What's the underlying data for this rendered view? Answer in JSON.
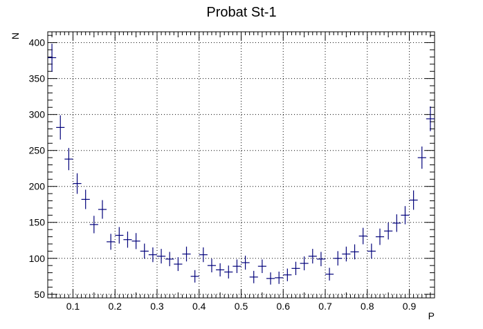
{
  "chart_data": {
    "type": "scatter",
    "title": "Probat St-1",
    "xlabel": "P",
    "ylabel": "N",
    "xlim": [
      0.04,
      0.96
    ],
    "ylim": [
      45,
      415
    ],
    "x_ticks": [
      0.1,
      0.2,
      0.3,
      0.4,
      0.5,
      0.6,
      0.7,
      0.8,
      0.9
    ],
    "x_tick_labels": [
      "0.1",
      "0.2",
      "0.3",
      "0.4",
      "0.5",
      "0.6",
      "0.7",
      "0.8",
      "0.9"
    ],
    "y_ticks": [
      50,
      100,
      150,
      200,
      250,
      300,
      350,
      400
    ],
    "y_tick_labels": [
      "50",
      "100",
      "150",
      "200",
      "250",
      "300",
      "350",
      "400"
    ],
    "grid": true,
    "marker_color": "#00007a",
    "bin_width": 0.02,
    "series": [
      {
        "x": [
          0.05,
          0.07,
          0.09,
          0.11,
          0.13,
          0.15,
          0.17,
          0.19,
          0.21,
          0.23,
          0.25,
          0.27,
          0.29,
          0.31,
          0.33,
          0.35,
          0.37,
          0.39,
          0.41,
          0.43,
          0.45,
          0.47,
          0.49,
          0.51,
          0.53,
          0.55,
          0.57,
          0.59,
          0.61,
          0.63,
          0.65,
          0.67,
          0.69,
          0.71,
          0.73,
          0.75,
          0.77,
          0.79,
          0.81,
          0.83,
          0.85,
          0.87,
          0.89,
          0.91,
          0.93,
          0.95
        ],
        "y": [
          379,
          282,
          238,
          204,
          182,
          147,
          168,
          123,
          132,
          126,
          124,
          110,
          105,
          103,
          99,
          92,
          106,
          75,
          105,
          90,
          84,
          81,
          89,
          94,
          74,
          89,
          72,
          73,
          77,
          86,
          93,
          103,
          99,
          78,
          100,
          106,
          109,
          131,
          110,
          130,
          138,
          149,
          160,
          181,
          240,
          294
        ]
      }
    ]
  }
}
